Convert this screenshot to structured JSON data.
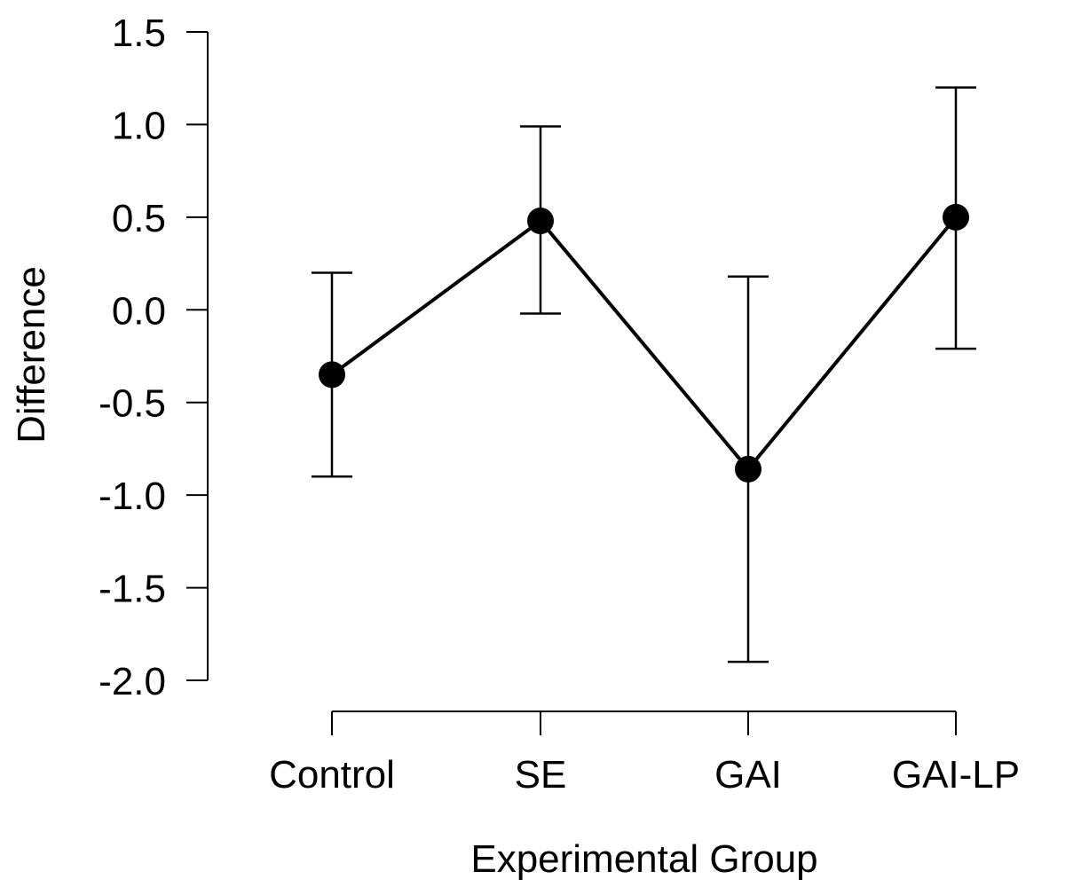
{
  "chart_data": {
    "type": "line",
    "title": "",
    "xlabel": "Experimental Group",
    "ylabel": "Difference",
    "categories": [
      "Control",
      "SE",
      "GAI",
      "GAI-LP"
    ],
    "series": [
      {
        "name": "Difference",
        "values": [
          -0.35,
          0.48,
          -0.86,
          0.5
        ],
        "ci_lower": [
          -0.9,
          -0.02,
          -1.9,
          -0.21
        ],
        "ci_upper": [
          0.2,
          0.99,
          0.18,
          1.2
        ]
      }
    ],
    "ylim": [
      -2.0,
      1.5
    ],
    "yticks": [
      1.5,
      1.0,
      0.5,
      0.0,
      -0.5,
      -1.0,
      -1.5,
      -2.0
    ],
    "ytick_labels": [
      "1.5",
      "1.0",
      "0.5",
      "0.0",
      "-0.5",
      "-1.0",
      "-1.5",
      "-2.0"
    ],
    "grid": false,
    "line_color": "#000000",
    "marker_color": "#000000"
  }
}
